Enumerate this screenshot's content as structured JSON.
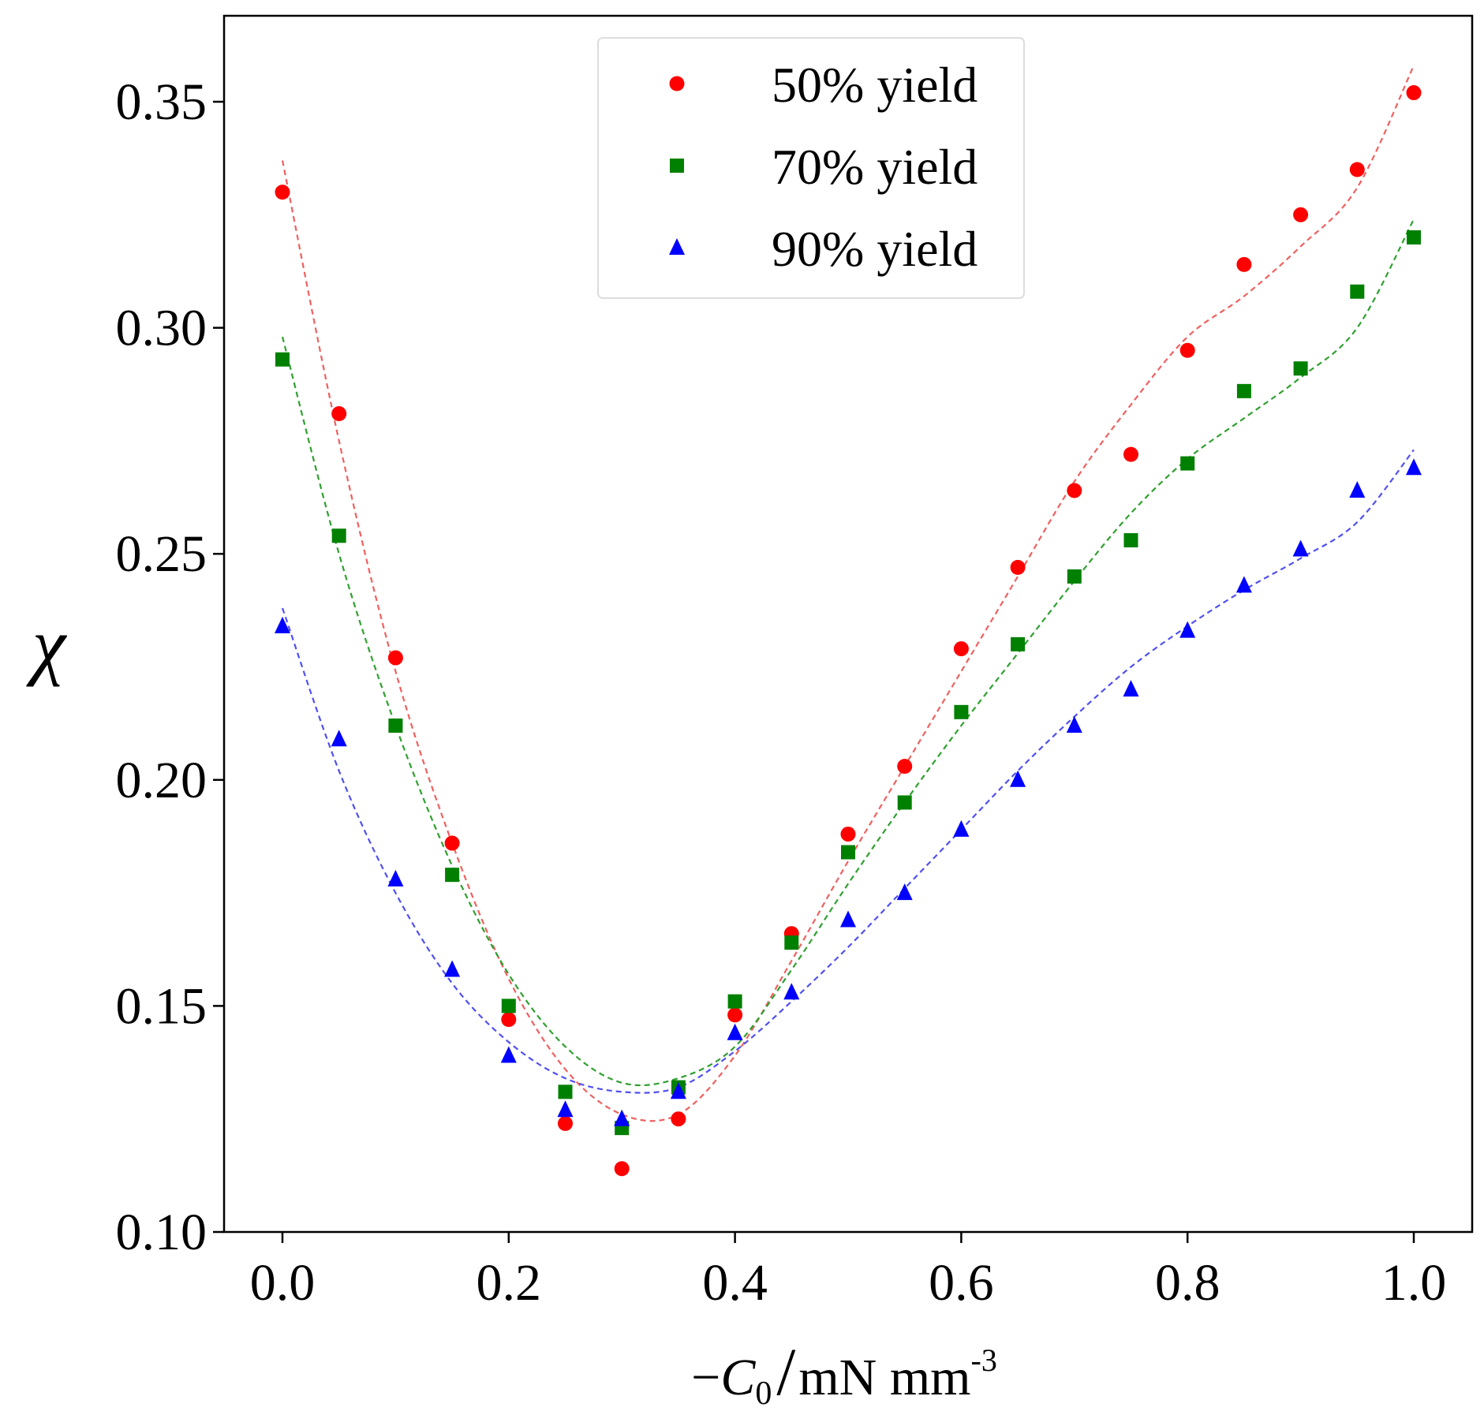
{
  "chart_data": {
    "type": "scatter",
    "title": "",
    "xlabel": {
      "minus": "−",
      "var": "C",
      "sub": "0",
      "slash": "/",
      "unit": "mN mm",
      "sup": "-3"
    },
    "ylabel": "χ",
    "xlim": [
      -0.05,
      1.05
    ],
    "ylim": [
      0.1,
      0.37
    ],
    "xticks": [
      "0.0",
      "0.2",
      "0.4",
      "0.6",
      "0.8",
      "1.0"
    ],
    "yticks": [
      "0.10",
      "0.15",
      "0.20",
      "0.25",
      "0.30",
      "0.35"
    ],
    "grid": false,
    "legend_position": "top-center",
    "x": [
      0.0,
      0.05,
      0.1,
      0.15,
      0.2,
      0.25,
      0.3,
      0.35,
      0.4,
      0.45,
      0.5,
      0.55,
      0.6,
      0.65,
      0.7,
      0.75,
      0.8,
      0.85,
      0.9,
      0.95,
      1.0
    ],
    "series": [
      {
        "name": "50% yield",
        "marker": "circle",
        "color": "#ff0000",
        "fit_color": "#f06060",
        "values": [
          0.33,
          0.281,
          0.227,
          0.186,
          0.147,
          0.124,
          0.114,
          0.125,
          0.148,
          0.166,
          0.188,
          0.203,
          0.229,
          0.247,
          0.264,
          0.272,
          0.295,
          0.314,
          0.325,
          0.335,
          0.352
        ],
        "fit": [
          0.337,
          0.275,
          0.224,
          0.186,
          0.156,
          0.136,
          0.126,
          0.126,
          0.139,
          0.16,
          0.182,
          0.203,
          0.224,
          0.245,
          0.266,
          0.283,
          0.298,
          0.307,
          0.318,
          0.331,
          0.358
        ]
      },
      {
        "name": "70% yield",
        "marker": "square",
        "color": "#008000",
        "fit_color": "#30a030",
        "values": [
          0.293,
          0.254,
          0.212,
          0.179,
          0.15,
          0.131,
          0.123,
          0.132,
          0.151,
          0.164,
          0.184,
          0.195,
          0.215,
          0.23,
          0.245,
          0.253,
          0.27,
          0.286,
          0.291,
          0.308,
          0.32
        ],
        "fit": [
          0.298,
          0.25,
          0.212,
          0.181,
          0.157,
          0.141,
          0.133,
          0.134,
          0.141,
          0.158,
          0.177,
          0.195,
          0.212,
          0.228,
          0.244,
          0.259,
          0.271,
          0.28,
          0.289,
          0.3,
          0.324
        ]
      },
      {
        "name": "90% yield",
        "marker": "triangle",
        "color": "#0000ff",
        "fit_color": "#5050f0",
        "values": [
          0.234,
          0.209,
          0.178,
          0.158,
          0.139,
          0.127,
          0.125,
          0.131,
          0.144,
          0.153,
          0.169,
          0.175,
          0.189,
          0.2,
          0.212,
          0.22,
          0.233,
          0.243,
          0.251,
          0.264,
          0.269
        ],
        "fit": [
          0.238,
          0.202,
          0.175,
          0.155,
          0.142,
          0.134,
          0.131,
          0.132,
          0.14,
          0.151,
          0.163,
          0.176,
          0.189,
          0.202,
          0.214,
          0.225,
          0.234,
          0.242,
          0.249,
          0.257,
          0.273
        ]
      }
    ]
  }
}
